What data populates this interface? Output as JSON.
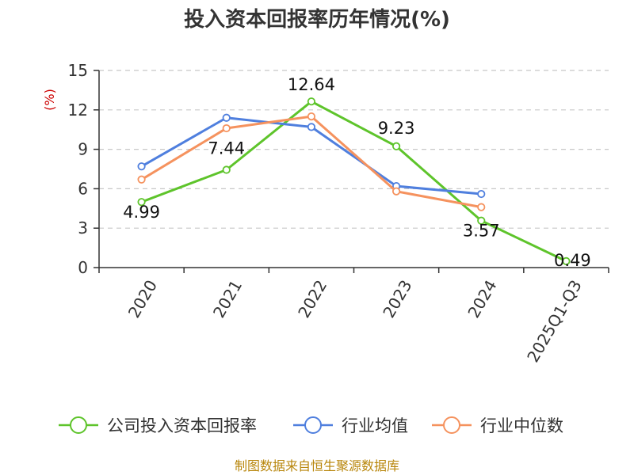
{
  "chart_data": {
    "type": "line",
    "title": "投入资本回报率历年情况(%)",
    "ylabel": "(%)",
    "categories": [
      "2020",
      "2021",
      "2022",
      "2023",
      "2024",
      "2025Q1-Q3"
    ],
    "ylim": [
      0,
      15
    ],
    "yticks": [
      "0",
      "3",
      "6",
      "9",
      "12",
      "15"
    ],
    "grid": true,
    "legend_position": "bottom",
    "series": [
      {
        "name": "公司投入资本回报率",
        "color": "#5ec42b",
        "values": [
          4.99,
          7.44,
          12.64,
          9.23,
          3.57,
          0.49
        ],
        "labels": [
          "4.99",
          "7.44",
          "12.64",
          "9.23",
          "3.57",
          "0.49"
        ]
      },
      {
        "name": "行业均值",
        "color": "#4f7fde",
        "values": [
          7.7,
          11.4,
          10.7,
          6.2,
          5.6,
          null
        ]
      },
      {
        "name": "行业中位数",
        "color": "#f5925e",
        "values": [
          6.7,
          10.6,
          11.5,
          5.8,
          4.6,
          null
        ]
      }
    ]
  },
  "source": "制图数据来自恒生聚源数据库"
}
